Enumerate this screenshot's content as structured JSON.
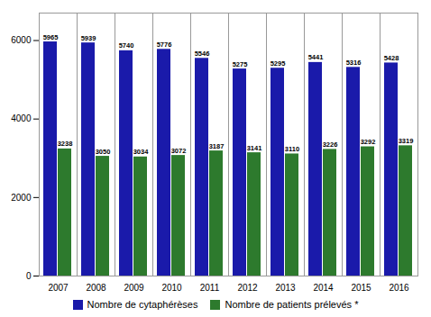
{
  "chart_data": {
    "type": "bar",
    "categories": [
      "2007",
      "2008",
      "2009",
      "2010",
      "2011",
      "2012",
      "2013",
      "2014",
      "2015",
      "2016"
    ],
    "series": [
      {
        "name": "Nombre de cytaphérèses",
        "color": "#1a1aaa",
        "values": [
          5965,
          5939,
          5740,
          5776,
          5546,
          5275,
          5295,
          5441,
          5316,
          5428
        ]
      },
      {
        "name": "Nombre de patients prélevés *",
        "color": "#2d7a2d",
        "values": [
          3238,
          3050,
          3034,
          3072,
          3187,
          3141,
          3110,
          3226,
          3292,
          3319
        ]
      }
    ],
    "ylim": [
      0,
      6700
    ],
    "yticks": [
      0,
      2000,
      4000,
      6000
    ],
    "data_labels": true,
    "legend": "bottom"
  }
}
